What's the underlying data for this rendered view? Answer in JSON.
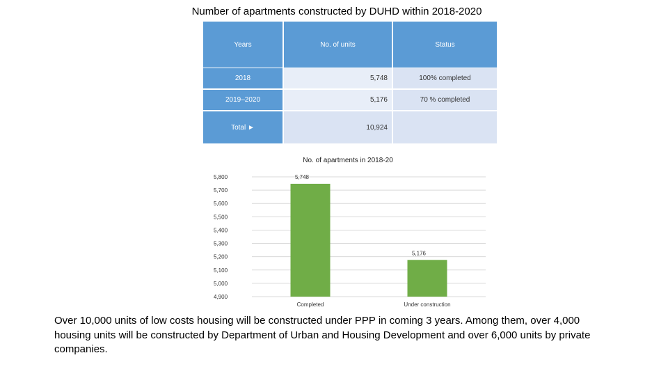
{
  "title": "Number of apartments constructed by DUHD within 2018-2020",
  "table": {
    "headers": [
      "Years",
      "No. of units",
      "Status"
    ],
    "rows": [
      {
        "year": "2018",
        "units": "5,748",
        "status": "100% completed"
      },
      {
        "year": "2019–2020",
        "units": "5,176",
        "status": "70 % completed"
      },
      {
        "year": "Total ►",
        "units": "10,924",
        "status": ""
      }
    ]
  },
  "chart_data": {
    "type": "bar",
    "title": "No. of apartments in 2018-20",
    "categories": [
      "Completed",
      "Under construction"
    ],
    "values": [
      5748,
      5176
    ],
    "value_labels": [
      "5,748",
      "5,176"
    ],
    "ylim": [
      4900,
      5800
    ],
    "yticks": [
      4900,
      5000,
      5100,
      5200,
      5300,
      5400,
      5500,
      5600,
      5700,
      5800
    ],
    "ytick_labels": [
      "4,900",
      "5,000",
      "5,100",
      "5,200",
      "5,300",
      "5,400",
      "5,500",
      "5,600",
      "5,700",
      "5,800"
    ],
    "bar_color": "#70ad47",
    "grid": true,
    "xlabel": "",
    "ylabel": ""
  },
  "paragraph": "Over 10,000 units of low costs housing will be constructed under PPP in coming 3 years. Among them, over 4,000 housing units will be constructed by Department of Urban and Housing Development and over 6,000 units by private companies."
}
